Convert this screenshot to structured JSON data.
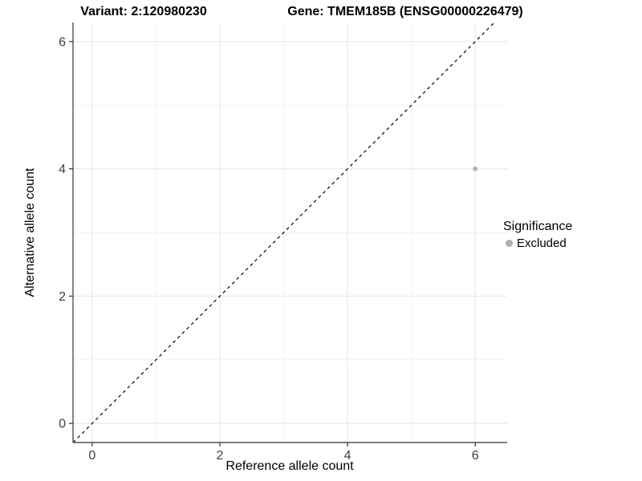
{
  "header": {
    "title_left": "Variant: 2:120980230",
    "title_right": "Gene: TMEM185B (ENSG00000226479)"
  },
  "legend": {
    "title": "Significance",
    "entries": [
      {
        "label": "Excluded",
        "color": "#b0b0b0"
      }
    ]
  },
  "chart_data": {
    "type": "scatter",
    "title": "Variant: 2:120980230 | Gene: TMEM185B (ENSG00000226479)",
    "xlabel": "Reference allele count",
    "ylabel": "Alternative allele count",
    "xlim": [
      -0.3,
      6.5
    ],
    "ylim": [
      -0.3,
      6.3
    ],
    "x_ticks": [
      0,
      2,
      4,
      6
    ],
    "y_ticks": [
      0,
      2,
      4,
      6
    ],
    "grid": "on",
    "legend_position": "right",
    "series": [
      {
        "name": "Excluded",
        "color": "#b0b0b0",
        "points": [
          {
            "x": 6,
            "y": 4
          }
        ]
      }
    ],
    "reference_line": {
      "equation": "y = x",
      "style": "dashed",
      "color": "#000000"
    },
    "colors": {
      "grid_major": "#e8e8e8",
      "grid_minor": "#f1f1f1",
      "axis_line": "#333333",
      "tick_text": "#404040",
      "background": "#ffffff"
    }
  }
}
